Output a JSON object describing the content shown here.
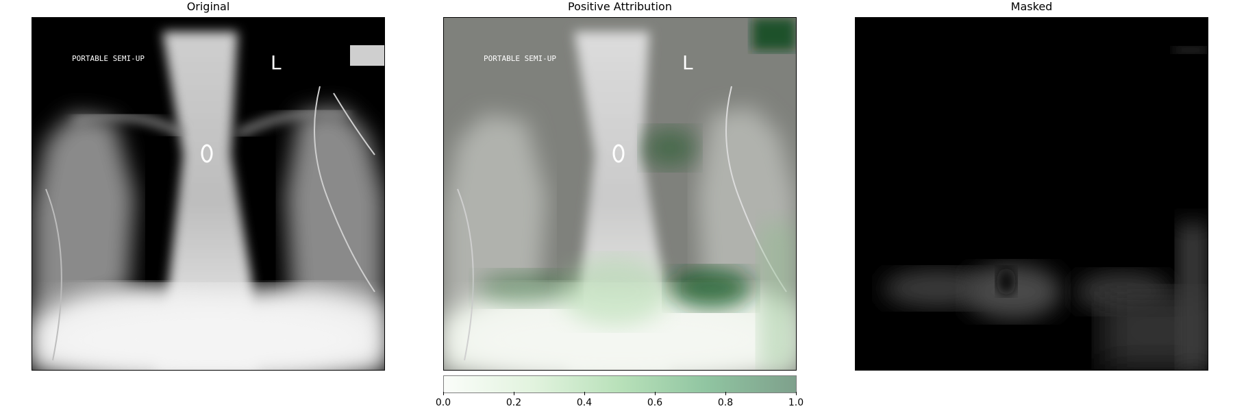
{
  "panels": [
    {
      "title": "Original"
    },
    {
      "title": "Positive Attribution"
    },
    {
      "title": "Masked"
    }
  ],
  "image_text": {
    "patient_label": "PORTABLE SEMI-UP",
    "side_marker": "L"
  },
  "colorbar": {
    "min": 0.0,
    "max": 1.0,
    "ticks": [
      "0.0",
      "0.2",
      "0.4",
      "0.6",
      "0.8",
      "1.0"
    ],
    "colors": [
      "#f7fcf5",
      "#c7e9c0",
      "#74c476",
      "#238b45",
      "#00441b"
    ]
  }
}
